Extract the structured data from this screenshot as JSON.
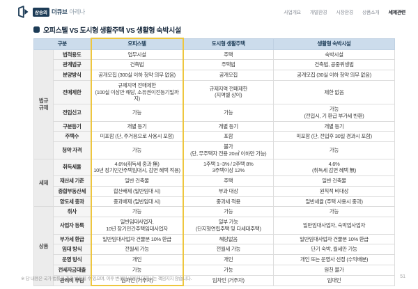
{
  "brand": {
    "badge": "삼송의",
    "name": "더큐브",
    "suffix": "아레나"
  },
  "nav": {
    "items": [
      {
        "label": "사업개요",
        "active": false
      },
      {
        "label": "개발환경",
        "active": false
      },
      {
        "label": "시장환경",
        "active": false
      },
      {
        "label": "상품소개",
        "active": false
      },
      {
        "label": "세제관련",
        "active": true
      }
    ]
  },
  "title": "오피스텔 VS 도시형 생활주택 VS 생활형 숙박시설",
  "table": {
    "headers": [
      "구분",
      "오피스텔",
      "도시형 생활주택",
      "생활형 숙박시설"
    ],
    "groups": [
      {
        "label": "법규\n규제",
        "rows": [
          {
            "label": "법적용도",
            "cells": [
              "업무시설",
              "주택",
              "숙박시설"
            ]
          },
          {
            "label": "관계법규",
            "cells": [
              "건축법",
              "주택법",
              "건축법, 공중위생법"
            ]
          },
          {
            "label": "분양방식",
            "cells": [
              "공개모집 (300실 이하 청약 의무 없음)",
              "공개모집",
              "공개모집 (30실 이하 청약 의무 없음)"
            ]
          },
          {
            "label": "전매제한",
            "cells": [
              "규제지역 전매제한\n(100실 이상만 해당, 소유권이전등기일까지)",
              "규제지역 전매제한\n(지역별 상이)",
              "제한 없음"
            ]
          },
          {
            "label": "전입신고",
            "cells": [
              "가능",
              "가능",
              "가능\n(전입시, 기 환급 부가세 반환)"
            ]
          },
          {
            "label": "구분등기",
            "cells": [
              "개별 등기",
              "개별 등기",
              "개별 등기"
            ]
          },
          {
            "label": "주택수",
            "cells": [
              "미포함 (단, 주거용으로 사용시 포함)",
              "포함",
              "미포함 (단, 전입후 30일 경과시 포함)"
            ]
          },
          {
            "label": "청약 자격",
            "cells": [
              "가능",
              "불가\n(단, 무주택자 전용 20㎡ 이하만 가능)",
              "가능"
            ]
          }
        ]
      },
      {
        "label": "세제",
        "rows": [
          {
            "label": "취득세율",
            "cells": [
              "4.6%(취득세 중과 無)\n10년 장기민간주택임대시, 감면 혜택 적용)",
              "1주택 1~3% / 2주택 8%\n3주택이상 12%",
              "4.6%\n(취득세 감면 혜택 無)"
            ]
          },
          {
            "label": "재산세 기준",
            "cells": [
              "일반 건축물",
              "주택",
              "일반 건축물"
            ]
          },
          {
            "label": "종합부동산세",
            "cells": [
              "합산배제 (일반임대 시)",
              "부과 대상",
              "원칙적 비대상"
            ]
          },
          {
            "label": "양도세 중과",
            "cells": [
              "중과배제 (일반임대 시)",
              "중과세 적용",
              "일반세율 (주택 사용시 중과)"
            ]
          }
        ]
      },
      {
        "label": "상품",
        "rows": [
          {
            "label": "취사",
            "cells": [
              "가능",
              "가능",
              "가능"
            ]
          },
          {
            "label": "사업자 등록",
            "cells": [
              "일반임대사업자,\n10년 장기민간주택임대사업자",
              "일부 가능\n(단지형연립주택 및 다세대주택)",
              "일반임대사업자, 숙박업사업자"
            ]
          },
          {
            "label": "부가세 환급",
            "cells": [
              "일반임대사업자 건물분 10% 환급",
              "해당없음",
              "일반임대사업자 건물분 10% 환급"
            ]
          },
          {
            "label": "임대 방식",
            "cells": [
              "전월세 가능",
              "전월세 가능",
              "단기 숙박, 월세만 가능"
            ]
          },
          {
            "label": "운영 방식",
            "cells": [
              "개인",
              "개인",
              "개인 또는 운영사 선정 (수익배분)"
            ]
          },
          {
            "label": "전세자금대출",
            "cells": [
              "가능",
              "가능",
              "원천 불가"
            ]
          },
          {
            "label": "관리비 부담",
            "cells": [
              "임차인 (거주자)",
              "임차인 (거주자)",
              "임대인"
            ]
          }
        ]
      }
    ]
  },
  "footnote": "※ 당 내용은 국가 법률로 추후 변동될 수 있으며, 이후 변경된 내용에 대해서는 책임지지 않습니다.",
  "page_number": "51",
  "colors": {
    "navy": "#1c3b56",
    "header_bg": "#ccdcec",
    "highlight_yellow": "#eec63e",
    "group_bg": "#ececec",
    "label_bg": "#f5f5f5"
  }
}
